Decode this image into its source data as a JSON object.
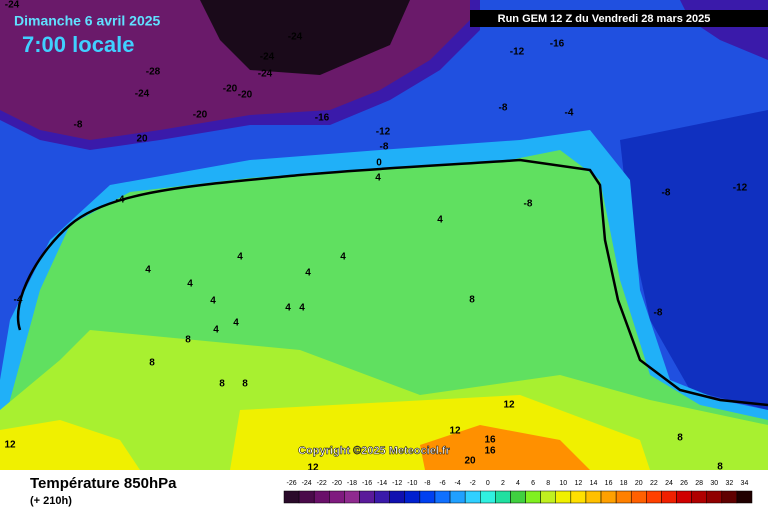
{
  "header": {
    "date": "Dimanche 6 avril 2025",
    "time": "7:00 locale",
    "run": "Run GEM 12 Z du Vendredi 28 mars 2025"
  },
  "copyright": "Copyright ©2025 Meteociel.fr",
  "footer": {
    "title": "Température 850hPa",
    "lead": "(+ 210h)"
  },
  "legend": {
    "labels": [
      -26,
      -24,
      -22,
      -20,
      -18,
      -16,
      -14,
      -12,
      -10,
      -8,
      -6,
      -4,
      -2,
      0,
      2,
      4,
      6,
      8,
      10,
      12,
      14,
      16,
      18,
      20,
      22,
      24,
      26,
      28,
      30,
      32,
      34
    ],
    "colors": [
      "#2a0a2a",
      "#4a0a4a",
      "#6a106a",
      "#7f1a7f",
      "#8f2a8f",
      "#5a1a9a",
      "#3a1aaa",
      "#1010b0",
      "#0020d0",
      "#0040f0",
      "#1070ff",
      "#20a0ff",
      "#30d0ff",
      "#30f0e0",
      "#20e0a0",
      "#40d040",
      "#80f020",
      "#c0f020",
      "#f0f000",
      "#ffe000",
      "#ffc000",
      "#ffa000",
      "#ff8000",
      "#ff6000",
      "#ff4000",
      "#f02000",
      "#d00000",
      "#b00000",
      "#900000",
      "#600000",
      "#200000"
    ]
  },
  "map_labels": [
    -24,
    -24,
    -24,
    -24,
    -24,
    -28,
    -20,
    -20,
    -20,
    -16,
    -12,
    -8,
    -8,
    20,
    -4,
    0,
    4,
    -12,
    -16,
    -8,
    -4,
    -8,
    -12,
    4,
    4,
    4,
    4,
    4,
    4,
    4,
    4,
    4,
    4,
    8,
    8,
    8,
    8,
    8,
    12,
    12,
    16,
    16,
    20,
    12,
    -8,
    -8,
    -4,
    4,
    12,
    8,
    8
  ]
}
